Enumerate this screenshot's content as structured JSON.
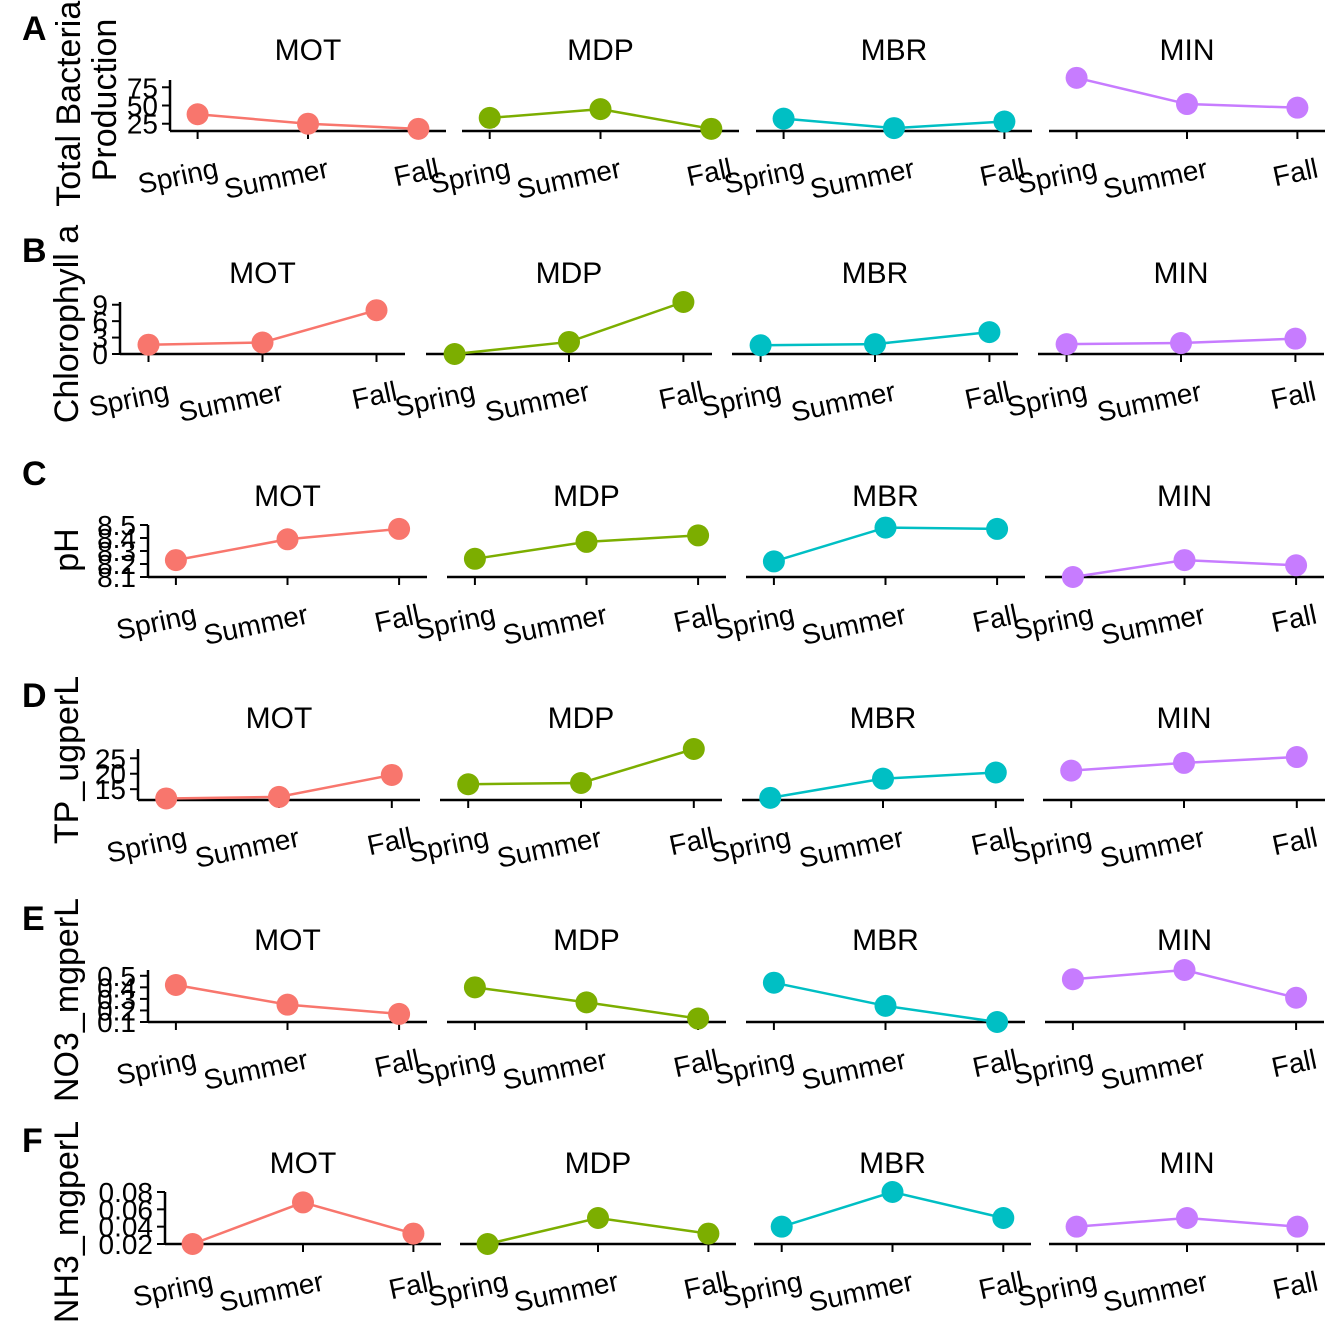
{
  "figure": {
    "categories": [
      "Spring",
      "Summer",
      "Fall"
    ],
    "series_colors": {
      "MOT": "#F8766D",
      "MDP": "#7CAE00",
      "MBR": "#00BFC4",
      "MIN": "#C77CFF"
    }
  },
  "chart_data": [
    {
      "type": "line",
      "panel": "A",
      "ylabel": "Total Bacterial Production",
      "ylabel_lines": [
        "Total Bacterial",
        "Production"
      ],
      "categories": [
        "Spring",
        "Summer",
        "Fall"
      ],
      "ylim": [
        15,
        85
      ],
      "yticks": [
        25,
        50,
        75
      ],
      "ytick_labels": [
        "25",
        "50",
        "75"
      ],
      "facets": [
        "MOT",
        "MDP",
        "MBR",
        "MIN"
      ],
      "series": [
        {
          "name": "MOT",
          "values": [
            38,
            25,
            18
          ]
        },
        {
          "name": "MDP",
          "values": [
            33,
            45,
            18
          ]
        },
        {
          "name": "MBR",
          "values": [
            32,
            19,
            28
          ]
        },
        {
          "name": "MIN",
          "values": [
            88,
            52,
            47
          ]
        }
      ]
    },
    {
      "type": "line",
      "panel": "B",
      "ylabel": "Chlorophyll a",
      "ylabel_lines": [
        "Chlorophyll a"
      ],
      "categories": [
        "Spring",
        "Summer",
        "Fall"
      ],
      "ylim": [
        0,
        9.5
      ],
      "yticks": [
        0,
        3,
        6,
        9
      ],
      "ytick_labels": [
        "0",
        "3",
        "6",
        "9"
      ],
      "facets": [
        "MOT",
        "MDP",
        "MBR",
        "MIN"
      ],
      "series": [
        {
          "name": "MOT",
          "values": [
            1.7,
            2.1,
            8.0
          ]
        },
        {
          "name": "MDP",
          "values": [
            0.0,
            2.2,
            9.5
          ]
        },
        {
          "name": "MBR",
          "values": [
            1.6,
            1.8,
            4.0
          ]
        },
        {
          "name": "MIN",
          "values": [
            1.8,
            2.0,
            2.8
          ]
        }
      ]
    },
    {
      "type": "line",
      "panel": "C",
      "ylabel": "pH",
      "ylabel_lines": [
        "pH"
      ],
      "categories": [
        "Spring",
        "Summer",
        "Fall"
      ],
      "ylim": [
        8.1,
        8.5
      ],
      "yticks": [
        8.1,
        8.2,
        8.3,
        8.4,
        8.5
      ],
      "ytick_labels": [
        "8.1",
        "8.2",
        "8.3",
        "8.4",
        "8.5"
      ],
      "facets": [
        "MOT",
        "MDP",
        "MBR",
        "MIN"
      ],
      "series": [
        {
          "name": "MOT",
          "values": [
            8.23,
            8.39,
            8.47
          ]
        },
        {
          "name": "MDP",
          "values": [
            8.24,
            8.37,
            8.42
          ]
        },
        {
          "name": "MBR",
          "values": [
            8.22,
            8.48,
            8.47
          ]
        },
        {
          "name": "MIN",
          "values": [
            8.1,
            8.23,
            8.19
          ]
        }
      ]
    },
    {
      "type": "line",
      "panel": "D",
      "ylabel": "TP_ugperL",
      "ylabel_lines": [
        "TP_ugperL"
      ],
      "categories": [
        "Spring",
        "Summer",
        "Fall"
      ],
      "ylim": [
        11.5,
        28
      ],
      "yticks": [
        15,
        20,
        25
      ],
      "ytick_labels": [
        "15",
        "20",
        "25"
      ],
      "facets": [
        "MOT",
        "MDP",
        "MBR",
        "MIN"
      ],
      "series": [
        {
          "name": "MOT",
          "values": [
            12.0,
            12.5,
            19.6
          ]
        },
        {
          "name": "MDP",
          "values": [
            16.6,
            17.0,
            28.0
          ]
        },
        {
          "name": "MBR",
          "values": [
            12.2,
            18.4,
            20.4
          ]
        },
        {
          "name": "MIN",
          "values": [
            21.0,
            23.5,
            25.4
          ]
        }
      ]
    },
    {
      "type": "line",
      "panel": "E",
      "ylabel": "NO3_mgperL",
      "ylabel_lines": [
        "NO3_mgperL"
      ],
      "categories": [
        "Spring",
        "Summer",
        "Fall"
      ],
      "ylim": [
        0.1,
        0.55
      ],
      "yticks": [
        0.1,
        0.2,
        0.3,
        0.4,
        0.5
      ],
      "ytick_labels": [
        "0.1",
        "0.2",
        "0.3",
        "0.4",
        "0.5"
      ],
      "facets": [
        "MOT",
        "MDP",
        "MBR",
        "MIN"
      ],
      "series": [
        {
          "name": "MOT",
          "values": [
            0.42,
            0.25,
            0.17
          ]
        },
        {
          "name": "MDP",
          "values": [
            0.4,
            0.27,
            0.13
          ]
        },
        {
          "name": "MBR",
          "values": [
            0.44,
            0.24,
            0.1
          ]
        },
        {
          "name": "MIN",
          "values": [
            0.47,
            0.55,
            0.31
          ]
        }
      ]
    },
    {
      "type": "line",
      "panel": "F",
      "ylabel": "NH3_mgperL",
      "ylabel_lines": [
        "NH3_mgperL"
      ],
      "categories": [
        "Spring",
        "Summer",
        "Fall"
      ],
      "ylim": [
        0.02,
        0.08
      ],
      "yticks": [
        0.02,
        0.04,
        0.06,
        0.08
      ],
      "ytick_labels": [
        "0.02",
        "0.04",
        "0.06",
        "0.08"
      ],
      "facets": [
        "MOT",
        "MDP",
        "MBR",
        "MIN"
      ],
      "series": [
        {
          "name": "MOT",
          "values": [
            0.02,
            0.068,
            0.032
          ]
        },
        {
          "name": "MDP",
          "values": [
            0.02,
            0.05,
            0.032
          ]
        },
        {
          "name": "MBR",
          "values": [
            0.04,
            0.08,
            0.05
          ]
        },
        {
          "name": "MIN",
          "values": [
            0.04,
            0.05,
            0.04
          ]
        }
      ]
    }
  ]
}
